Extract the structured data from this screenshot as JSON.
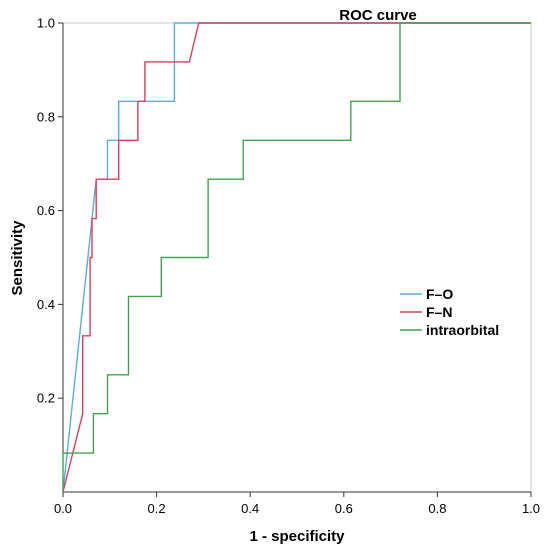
{
  "chart_data": {
    "type": "line",
    "title": "ROC curve",
    "xlabel": "1 - specificity",
    "ylabel": "Sensitivity",
    "xlim": [
      0,
      1
    ],
    "ylim": [
      0,
      1
    ],
    "x_ticks": [
      "0.0",
      "0.2",
      "0.4",
      "0.6",
      "0.8",
      "1.0"
    ],
    "y_ticks": [
      "0.2",
      "0.4",
      "0.6",
      "0.8",
      "1.0"
    ],
    "legend_position": "center-right",
    "grid": false,
    "series": [
      {
        "name": "F–O",
        "color": "#5aaed6",
        "points": [
          [
            0,
            0
          ],
          [
            0.071,
            0.667
          ],
          [
            0.095,
            0.667
          ],
          [
            0.095,
            0.75
          ],
          [
            0.119,
            0.75
          ],
          [
            0.119,
            0.833
          ],
          [
            0.238,
            0.833
          ],
          [
            0.238,
            1.0
          ],
          [
            1.0,
            1.0
          ]
        ]
      },
      {
        "name": "F–N",
        "color": "#d4415f",
        "points": [
          [
            0,
            0
          ],
          [
            0.042,
            0.167
          ],
          [
            0.042,
            0.333
          ],
          [
            0.058,
            0.333
          ],
          [
            0.058,
            0.5
          ],
          [
            0.062,
            0.5
          ],
          [
            0.062,
            0.583
          ],
          [
            0.071,
            0.583
          ],
          [
            0.071,
            0.667
          ],
          [
            0.119,
            0.667
          ],
          [
            0.119,
            0.75
          ],
          [
            0.16,
            0.75
          ],
          [
            0.16,
            0.833
          ],
          [
            0.175,
            0.833
          ],
          [
            0.175,
            0.917
          ],
          [
            0.27,
            0.917
          ],
          [
            0.29,
            1.0
          ],
          [
            1.0,
            1.0
          ]
        ]
      },
      {
        "name": "intraorbital",
        "color": "#45a054",
        "points": [
          [
            0,
            0
          ],
          [
            0,
            0.083
          ],
          [
            0.065,
            0.083
          ],
          [
            0.065,
            0.167
          ],
          [
            0.095,
            0.167
          ],
          [
            0.095,
            0.25
          ],
          [
            0.14,
            0.25
          ],
          [
            0.14,
            0.417
          ],
          [
            0.21,
            0.417
          ],
          [
            0.21,
            0.5
          ],
          [
            0.31,
            0.5
          ],
          [
            0.31,
            0.667
          ],
          [
            0.385,
            0.667
          ],
          [
            0.385,
            0.75
          ],
          [
            0.615,
            0.75
          ],
          [
            0.615,
            0.833
          ],
          [
            0.72,
            0.833
          ],
          [
            0.72,
            1.0
          ],
          [
            1.0,
            1.0
          ]
        ]
      }
    ]
  }
}
